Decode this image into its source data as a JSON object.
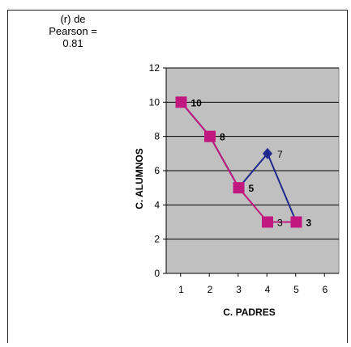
{
  "annotation": "(r) de\nPearson =\n0.81",
  "chart_data": {
    "type": "line",
    "xlabel": "C. PADRES",
    "ylabel": "C. ALUMNOS",
    "xlim": [
      0,
      6
    ],
    "ylim": [
      0,
      12
    ],
    "x_ticks": [
      1,
      2,
      3,
      4,
      5,
      6
    ],
    "y_ticks": [
      0,
      2,
      4,
      6,
      8,
      10,
      12
    ],
    "grid": "horizontal",
    "plot_background": "#c0c0c0",
    "series": [
      {
        "color": "#1f2a8c",
        "marker": "diamond",
        "points": [
          {
            "x": 1,
            "y": 10
          },
          {
            "x": 2,
            "y": 8
          },
          {
            "x": 3,
            "y": 5
          },
          {
            "x": 4,
            "y": 7,
            "label": "7"
          },
          {
            "x": 5,
            "y": 3
          }
        ]
      },
      {
        "color": "#c0187f",
        "marker": "square",
        "points": [
          {
            "x": 1,
            "y": 10,
            "label": "10"
          },
          {
            "x": 2,
            "y": 8,
            "label": "8"
          },
          {
            "x": 3,
            "y": 5,
            "label": "5"
          },
          {
            "x": 4,
            "y": 3,
            "label": "3"
          },
          {
            "x": 5,
            "y": 3,
            "label": "3"
          }
        ]
      }
    ]
  }
}
